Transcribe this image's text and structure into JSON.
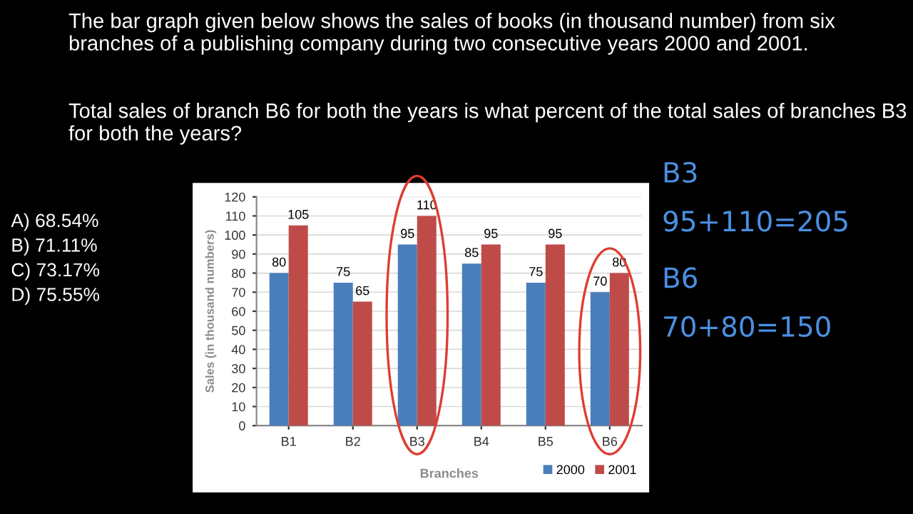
{
  "chart_data": {
    "type": "bar",
    "title": "The bar graph given below shows the sales of books (in thousand number) from six branches of a publishing company during two consecutive years 2000 and 2001.",
    "subtitle": "Total sales of branch B6 for both the years is what percent of the total sales of branches B3 for both the years?",
    "xlabel": "Branches",
    "ylabel": "Sales (in thousand numbers)",
    "categories": [
      "B1",
      "B2",
      "B3",
      "B4",
      "B5",
      "B6"
    ],
    "series": [
      {
        "name": "2000",
        "color": "#4a7ebb",
        "values": [
          80,
          75,
          95,
          85,
          75,
          70
        ]
      },
      {
        "name": "2001",
        "color": "#be4b48",
        "values": [
          105,
          65,
          110,
          95,
          95,
          80
        ]
      }
    ],
    "ylim": [
      0,
      120
    ],
    "yticks": [
      0,
      10,
      20,
      30,
      40,
      50,
      60,
      70,
      80,
      90,
      100,
      110,
      120
    ],
    "grid": "y",
    "legend": "bottom right",
    "data_labels": true,
    "annotations": [
      "A) 68.54%",
      "B) 71.11%",
      "C) 73.17%",
      "D) 75.55%",
      "B3",
      "95+110=205",
      "B6",
      "70+80=150"
    ]
  }
}
